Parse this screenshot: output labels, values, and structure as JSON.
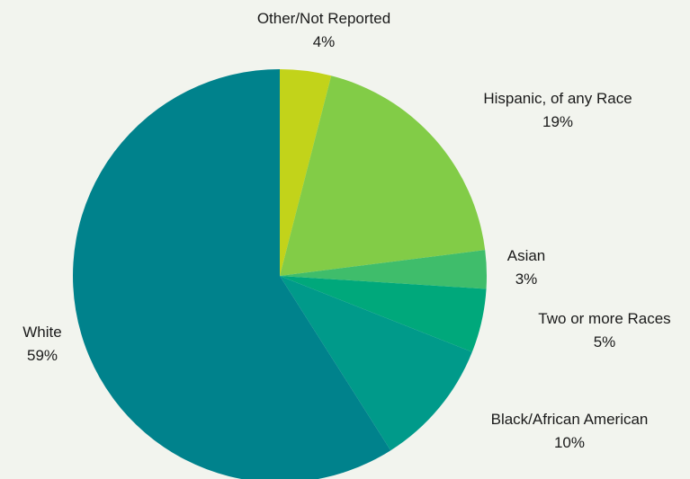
{
  "chart_data": {
    "type": "pie",
    "start_angle": "12 o'clock",
    "direction": "clockwise",
    "slices": [
      {
        "label": "Other/Not Reported",
        "value": 4,
        "value_label": "4%",
        "color": "#c2d31a"
      },
      {
        "label": "Hispanic, of any Race",
        "value": 19,
        "value_label": "19%",
        "color": "#82cc47"
      },
      {
        "label": "Asian",
        "value": 3,
        "value_label": "3%",
        "color": "#3fbd6b"
      },
      {
        "label": "Two or more Races",
        "value": 5,
        "value_label": "5%",
        "color": "#00a87b"
      },
      {
        "label": "Black/African American",
        "value": 10,
        "value_label": "10%",
        "color": "#009a8a"
      },
      {
        "label": "White",
        "value": 59,
        "value_label": "59%",
        "color": "#00828c"
      }
    ]
  }
}
